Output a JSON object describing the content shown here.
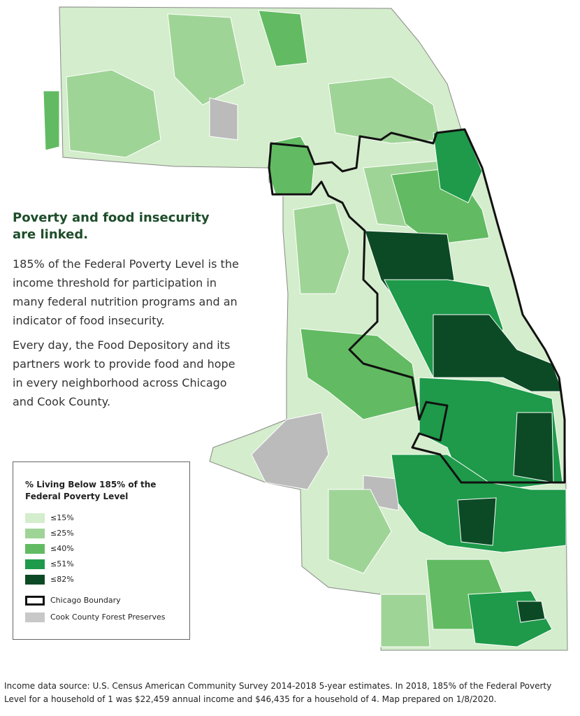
{
  "heading": "Poverty and food insecurity are linked.",
  "paragraphs": [
    "185% of the Federal Poverty Level is the income threshold for participation in many federal nutrition programs and an indicator of food insecurity.",
    "Every day, the Food Depository and its partners work to provide food and hope in every neighborhood across Chicago and Cook County."
  ],
  "legend": {
    "title": "% Living Below 185% of the Federal Poverty Level",
    "items": [
      {
        "label": "≤15%",
        "color": "#d4edcc"
      },
      {
        "label": "≤25%",
        "color": "#9fd497"
      },
      {
        "label": "≤40%",
        "color": "#62bb62"
      },
      {
        "label": "≤51%",
        "color": "#1e9a4a"
      },
      {
        "label": "≤82%",
        "color": "#0c4a25"
      }
    ],
    "boundary": "Chicago Boundary",
    "forest": "Cook County Forest Preserves"
  },
  "footnote": "Income data source: U.S. Census American Community Survey 2014-2018 5-year estimates. In 2018, 185% of the Federal Poverty Level for a household of 1 was $22,459 annual income and $46,435 for a household of 4. Map prepared on 1/8/2020."
}
